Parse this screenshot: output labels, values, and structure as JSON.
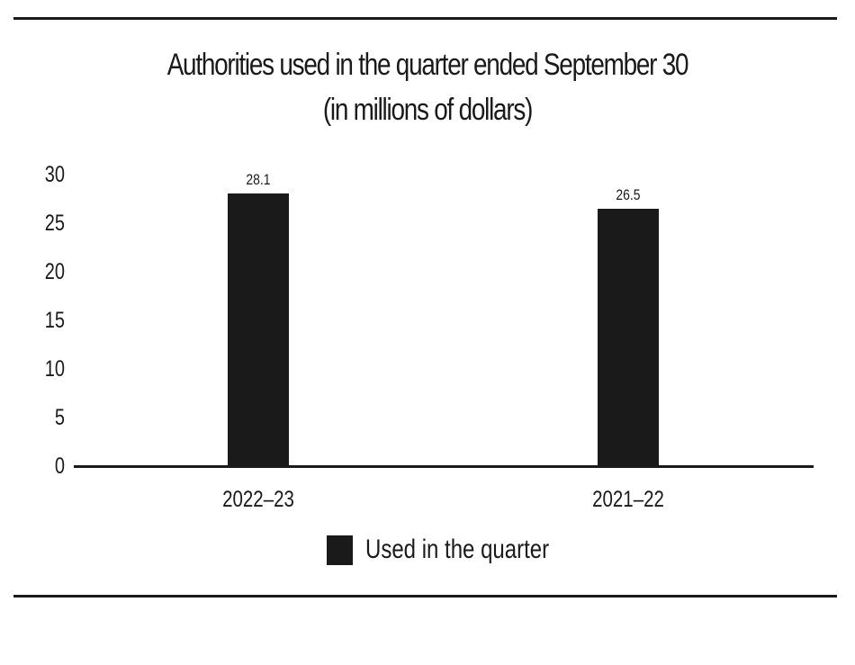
{
  "chart_data": {
    "type": "bar",
    "title": "Authorities used in the quarter ended September 30",
    "subtitle": "(in millions of dollars)",
    "categories": [
      "2022–23",
      "2021–22"
    ],
    "series": [
      {
        "name": "Used in the quarter",
        "values": [
          28.1,
          26.5
        ],
        "color": "#1a1a1a"
      }
    ],
    "data_labels": [
      "28.1",
      "26.5"
    ],
    "xlabel": "",
    "ylabel": "",
    "ylim": [
      0,
      30
    ],
    "yticks": [
      "0",
      "5",
      "10",
      "15",
      "20",
      "25",
      "30"
    ],
    "grid": false,
    "legend_position": "bottom"
  }
}
